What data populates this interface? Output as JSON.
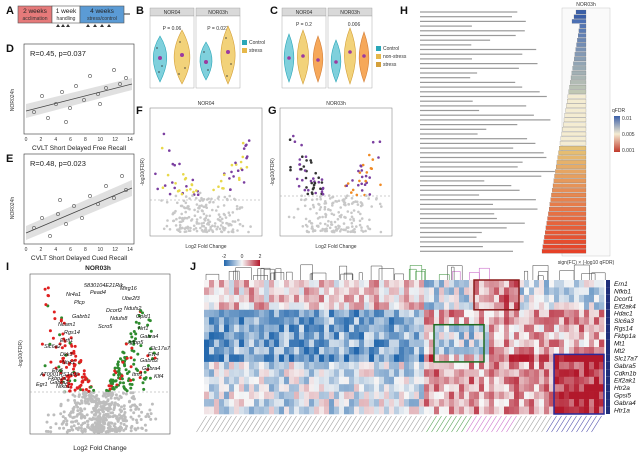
{
  "panel_letters": {
    "A": "A",
    "B": "B",
    "C": "C",
    "D": "D",
    "E": "E",
    "F": "F",
    "G": "G",
    "H": "H",
    "I": "I",
    "J": "J"
  },
  "panelA": {
    "box1": "2 weeks",
    "box1_sub": "acclimation",
    "box2": "1 week",
    "box2_sub": "handling",
    "box3": "4 weeks",
    "box3_sub": "stress/control"
  },
  "panelB": {
    "strip_left": "NOR04",
    "strip_right": "NOR03h",
    "p_left": "P = 0.06",
    "p_right": "P = 0.023"
  },
  "panelC": {
    "strip_left": "NOR04",
    "strip_right": "NOR03h",
    "p_left": "P = 0.2",
    "p_right": "0.006",
    "legend": [
      {
        "label": "Control",
        "color": "#2aa7b8"
      },
      {
        "label": "non-stress",
        "color": "#e6b84a"
      },
      {
        "label": "stress",
        "color": "#d4a03a"
      }
    ]
  },
  "panelD": {
    "stat": "R=0.45, p=0.037",
    "ylabel": "NOR024h",
    "xlabel": "CVLT Short Delayed Free Recall",
    "xticks": [
      "0",
      "2",
      "4",
      "6",
      "8",
      "10",
      "12",
      "14"
    ]
  },
  "panelE": {
    "stat": "R=0.48, p=0.023",
    "ylabel": "NOR024h",
    "xlabel": "CVLT Short Delayed Cued Recall",
    "xticks": [
      "0",
      "2",
      "4",
      "6",
      "8",
      "10",
      "12",
      "14"
    ]
  },
  "panelF": {
    "title": "NOR04",
    "xlabel": "Log2 Fold Change",
    "ylabel": "-log10(FDR)"
  },
  "panelG": {
    "title": "NOR03h",
    "xlabel": "Log2 Fold Change",
    "ylabel": "-log10(FDR)"
  },
  "panelH": {
    "title": "NOR03h",
    "legend_title": "qFDR",
    "legend_ticks": [
      "0.01",
      "0.005",
      "0.001"
    ],
    "xlabel": "sign(FC) × (-log10 qFDR)"
  },
  "panelI": {
    "title": "NOR03h",
    "xlabel": "Log2 Fold Change",
    "ylabel": "-log10(FDR)",
    "genes": [
      "5830104E21Rik",
      "Pead4",
      "Plcp",
      "Mirg16",
      "Ube2f3",
      "Ndufs2",
      "Gpld1",
      "Dcorf2",
      "Ndufs8",
      "Scro5",
      "Nrf1",
      "Gabra4",
      "Rgs14",
      "Errfi1",
      "Igfbp5",
      "Slc17a7",
      "Etv4",
      "Dkk3",
      "Ntrk1",
      "Gabrb2",
      "Gabra4",
      "Etv5",
      "Fkbp1a",
      "Slc6a2",
      "Ncam1",
      "AT0001RS1406",
      "Egr1",
      "Nr4a1",
      "Gabrb1",
      "Itm1",
      "Klf4",
      "Nfkb1",
      "Gabra2"
    ]
  },
  "panelJ": {
    "scale_labels": [
      "-2",
      "0",
      "2"
    ],
    "genes": [
      "Ern1",
      "Nfkb1",
      "Dcorf1",
      "Eif2ak4",
      "Hdac1",
      "Slc6a3",
      "Rgs14",
      "Fkbp1a",
      "Mt1",
      "Mt2",
      "Slc17a7",
      "Gabra5",
      "Cdkn1b",
      "Eif2ak1",
      "Htr2a",
      "Gpsi5",
      "Gabra4",
      "Htr1a"
    ]
  },
  "colors": {
    "up": "#d62020",
    "down": "#2e8b2e",
    "ns": "#b5b5b5",
    "heat_high": "#b2182b",
    "heat_low": "#2166ac"
  }
}
